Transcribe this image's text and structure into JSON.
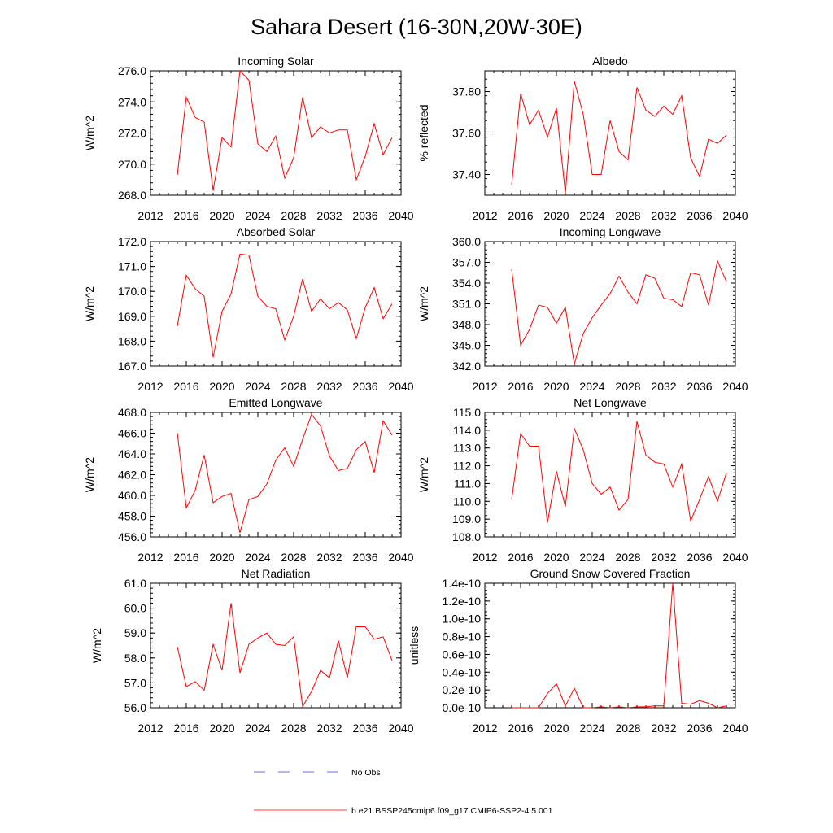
{
  "figure": {
    "title": "Sahara Desert (16-30N,20W-30E)"
  },
  "legend": {
    "entries": [
      {
        "label": "No Obs",
        "color": "#4040c0",
        "style": "dashed"
      },
      {
        "label": "b.e21.BSSP245cmip6.f09_g17.CMIP6-SSP2-4.5.001",
        "color": "#ff0000",
        "style": "solid"
      }
    ]
  },
  "chart_data": [
    {
      "type": "line",
      "title": "Incoming Solar",
      "ylabel": "W/m^2",
      "xlim": [
        2012,
        2040
      ],
      "ylim": [
        268,
        276
      ],
      "xticks": [
        "2012",
        "2016",
        "2020",
        "2024",
        "2028",
        "2032",
        "2036",
        "2040"
      ],
      "yticks": [
        "268.0",
        "270.0",
        "272.0",
        "274.0",
        "276.0"
      ],
      "series": [
        {
          "color": "#ff0000",
          "x": [
            2015,
            2016,
            2017,
            2018,
            2019,
            2020,
            2021,
            2022,
            2023,
            2024,
            2025,
            2026,
            2027,
            2028,
            2029,
            2030,
            2031,
            2032,
            2033,
            2034,
            2035,
            2036,
            2037,
            2038,
            2039
          ],
          "y": [
            269.3,
            274.3,
            273.0,
            272.7,
            268.3,
            271.7,
            271.1,
            276.0,
            275.4,
            271.3,
            270.8,
            271.8,
            269.1,
            270.4,
            274.3,
            271.7,
            272.4,
            272.0,
            272.2,
            272.2,
            269.0,
            270.5,
            272.6,
            270.6,
            271.7
          ]
        }
      ]
    },
    {
      "type": "line",
      "title": "Albedo",
      "ylabel": "% reflected",
      "xlim": [
        2012,
        2040
      ],
      "ylim": [
        37.3,
        37.9
      ],
      "xticks": [
        "2012",
        "2016",
        "2020",
        "2024",
        "2028",
        "2032",
        "2036",
        "2040"
      ],
      "yticks": [
        "37.40",
        "37.60",
        "37.80"
      ],
      "ytick_values": [
        37.4,
        37.6,
        37.8
      ],
      "series": [
        {
          "color": "#ff0000",
          "x": [
            2015,
            2016,
            2017,
            2018,
            2019,
            2020,
            2021,
            2022,
            2023,
            2024,
            2025,
            2026,
            2027,
            2028,
            2029,
            2030,
            2031,
            2032,
            2033,
            2034,
            2035,
            2036,
            2037,
            2038,
            2039
          ],
          "y": [
            37.35,
            37.79,
            37.64,
            37.71,
            37.58,
            37.72,
            37.31,
            37.85,
            37.69,
            37.4,
            37.4,
            37.66,
            37.51,
            37.47,
            37.82,
            37.71,
            37.68,
            37.73,
            37.69,
            37.78,
            37.48,
            37.39,
            37.57,
            37.55,
            37.59
          ]
        }
      ]
    },
    {
      "type": "line",
      "title": "Absorbed Solar",
      "ylabel": "W/m^2",
      "xlim": [
        2012,
        2040
      ],
      "ylim": [
        167,
        172
      ],
      "xticks": [
        "2012",
        "2016",
        "2020",
        "2024",
        "2028",
        "2032",
        "2036",
        "2040"
      ],
      "yticks": [
        "167.0",
        "168.0",
        "169.0",
        "170.0",
        "171.0",
        "172.0"
      ],
      "series": [
        {
          "color": "#ff0000",
          "x": [
            2015,
            2016,
            2017,
            2018,
            2019,
            2020,
            2021,
            2022,
            2023,
            2024,
            2025,
            2026,
            2027,
            2028,
            2029,
            2030,
            2031,
            2032,
            2033,
            2034,
            2035,
            2036,
            2037,
            2038,
            2039
          ],
          "y": [
            168.6,
            170.65,
            170.1,
            169.8,
            167.35,
            169.2,
            169.9,
            171.5,
            171.45,
            169.8,
            169.4,
            169.3,
            168.05,
            169.0,
            170.5,
            169.2,
            169.7,
            169.3,
            169.55,
            169.25,
            168.1,
            169.35,
            170.15,
            168.9,
            169.5
          ]
        }
      ]
    },
    {
      "type": "line",
      "title": "Incoming Longwave",
      "ylabel": "W/m^2",
      "xlim": [
        2012,
        2040
      ],
      "ylim": [
        342,
        360
      ],
      "xticks": [
        "2012",
        "2016",
        "2020",
        "2024",
        "2028",
        "2032",
        "2036",
        "2040"
      ],
      "yticks": [
        "342.0",
        "345.0",
        "348.0",
        "351.0",
        "354.0",
        "357.0",
        "360.0"
      ],
      "series": [
        {
          "color": "#ff0000",
          "x": [
            2015,
            2016,
            2017,
            2018,
            2019,
            2020,
            2021,
            2022,
            2023,
            2024,
            2025,
            2026,
            2027,
            2028,
            2029,
            2030,
            2031,
            2032,
            2033,
            2034,
            2035,
            2036,
            2037,
            2038,
            2039
          ],
          "y": [
            356.0,
            345.0,
            347.3,
            350.8,
            350.5,
            348.2,
            350.5,
            342.3,
            346.7,
            349.0,
            350.8,
            352.5,
            355.0,
            352.7,
            351.0,
            355.2,
            354.7,
            351.8,
            351.6,
            350.6,
            355.5,
            355.2,
            350.8,
            357.2,
            354.2
          ]
        }
      ]
    },
    {
      "type": "line",
      "title": "Emitted Longwave",
      "ylabel": "W/m^2",
      "xlim": [
        2012,
        2040
      ],
      "ylim": [
        456,
        468
      ],
      "xticks": [
        "2012",
        "2016",
        "2020",
        "2024",
        "2028",
        "2032",
        "2036",
        "2040"
      ],
      "yticks": [
        "456.0",
        "458.0",
        "460.0",
        "462.0",
        "464.0",
        "466.0",
        "468.0"
      ],
      "series": [
        {
          "color": "#ff0000",
          "x": [
            2015,
            2016,
            2017,
            2018,
            2019,
            2020,
            2021,
            2022,
            2023,
            2024,
            2025,
            2026,
            2027,
            2028,
            2029,
            2030,
            2031,
            2032,
            2033,
            2034,
            2035,
            2036,
            2037,
            2038,
            2039
          ],
          "y": [
            466.0,
            458.8,
            460.5,
            463.9,
            459.3,
            459.9,
            460.2,
            456.4,
            459.6,
            459.9,
            461.1,
            463.4,
            464.6,
            462.8,
            465.4,
            467.8,
            466.7,
            463.8,
            462.4,
            462.6,
            464.4,
            465.2,
            462.2,
            467.2,
            465.8
          ]
        }
      ]
    },
    {
      "type": "line",
      "title": "Net Longwave",
      "ylabel": "W/m^2",
      "xlim": [
        2012,
        2040
      ],
      "ylim": [
        108,
        115
      ],
      "xticks": [
        "2012",
        "2016",
        "2020",
        "2024",
        "2028",
        "2032",
        "2036",
        "2040"
      ],
      "yticks": [
        "108.0",
        "109.0",
        "110.0",
        "111.0",
        "112.0",
        "113.0",
        "114.0",
        "115.0"
      ],
      "series": [
        {
          "color": "#ff0000",
          "x": [
            2015,
            2016,
            2017,
            2018,
            2019,
            2020,
            2021,
            2022,
            2023,
            2024,
            2025,
            2026,
            2027,
            2028,
            2029,
            2030,
            2031,
            2032,
            2033,
            2034,
            2035,
            2036,
            2037,
            2038,
            2039
          ],
          "y": [
            110.1,
            113.8,
            113.1,
            113.1,
            108.8,
            111.7,
            109.7,
            114.1,
            112.9,
            111.0,
            110.4,
            110.8,
            109.5,
            110.1,
            114.5,
            112.6,
            112.2,
            112.1,
            110.8,
            112.1,
            108.9,
            110.1,
            111.4,
            110.0,
            111.6
          ]
        }
      ]
    },
    {
      "type": "line",
      "title": "Net Radiation",
      "ylabel": "W/m^2",
      "xlim": [
        2012,
        2040
      ],
      "ylim": [
        56,
        61
      ],
      "xticks": [
        "2012",
        "2016",
        "2020",
        "2024",
        "2028",
        "2032",
        "2036",
        "2040"
      ],
      "yticks": [
        "56.0",
        "57.0",
        "58.0",
        "59.0",
        "60.0",
        "61.0"
      ],
      "series": [
        {
          "color": "#ff0000",
          "x": [
            2015,
            2016,
            2017,
            2018,
            2019,
            2020,
            2021,
            2022,
            2023,
            2024,
            2025,
            2026,
            2027,
            2028,
            2029,
            2030,
            2031,
            2032,
            2033,
            2034,
            2035,
            2036,
            2037,
            2038,
            2039
          ],
          "y": [
            58.45,
            56.85,
            57.05,
            56.7,
            58.55,
            57.5,
            60.2,
            57.4,
            58.55,
            58.8,
            59.0,
            58.55,
            58.5,
            58.85,
            56.05,
            56.65,
            57.5,
            57.2,
            58.7,
            57.2,
            59.25,
            59.25,
            58.75,
            58.85,
            57.9
          ]
        }
      ]
    },
    {
      "type": "line",
      "title": "Ground Snow Covered Fraction",
      "ylabel": "unitless",
      "xlim": [
        2012,
        2040
      ],
      "ylim": [
        0,
        1.4e-10
      ],
      "xticks": [
        "2012",
        "2016",
        "2020",
        "2024",
        "2028",
        "2032",
        "2036",
        "2040"
      ],
      "yticks": [
        "0.0e-10",
        "0.2e-10",
        "0.4e-10",
        "0.6e-10",
        "0.8e-10",
        "1.0e-10",
        "1.2e-10",
        "1.4e-10"
      ],
      "series": [
        {
          "color": "#ff0000",
          "x": [
            2015,
            2016,
            2017,
            2018,
            2019,
            2020,
            2021,
            2022,
            2023,
            2024,
            2025,
            2026,
            2027,
            2028,
            2029,
            2030,
            2031,
            2032,
            2033,
            2034,
            2035,
            2036,
            2037,
            2038,
            2039
          ],
          "y": [
            0,
            0,
            0,
            0,
            1.6e-11,
            2.7e-11,
            2e-12,
            2.2e-11,
            0,
            0,
            1e-12,
            0,
            1e-12,
            0,
            1e-12,
            1e-12,
            2e-12,
            2e-12,
            1.4e-10,
            5e-12,
            4e-12,
            8e-12,
            5e-12,
            0,
            2e-12
          ]
        }
      ]
    }
  ]
}
